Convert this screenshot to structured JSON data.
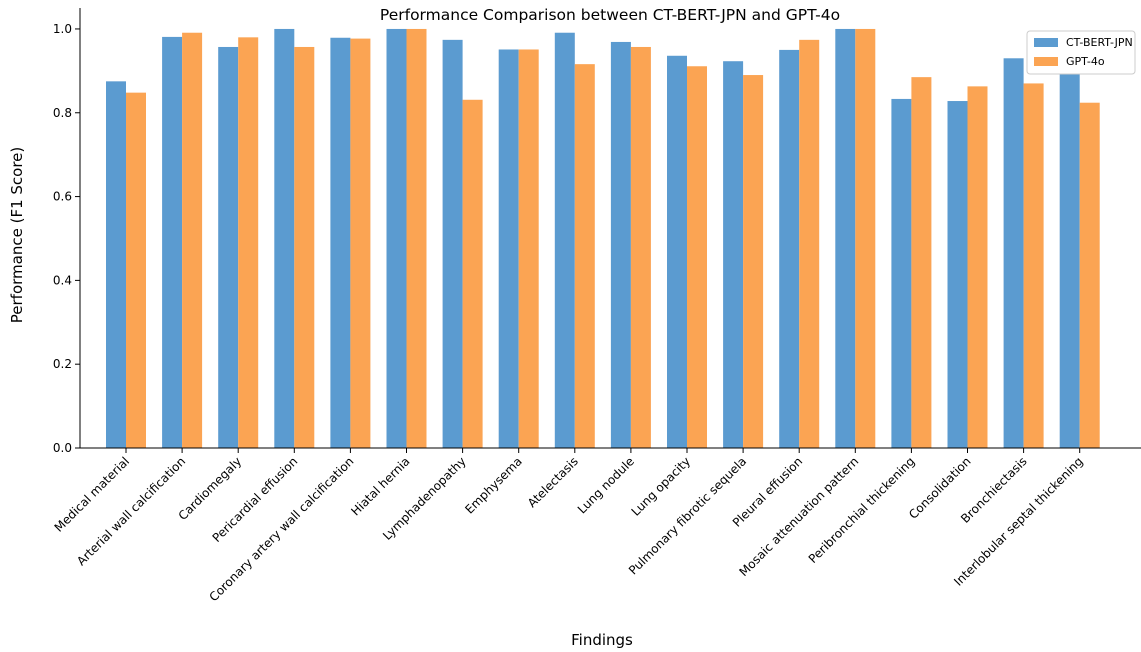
{
  "chart_data": {
    "type": "bar",
    "title": "Performance Comparison between CT-BERT-JPN and GPT-4o",
    "xlabel": "Findings",
    "ylabel": "Performance (F1 Score)",
    "ylim": [
      0,
      1.05
    ],
    "yticks": [
      "0.0",
      "0.2",
      "0.4",
      "0.6",
      "0.8",
      "1.0"
    ],
    "grid": false,
    "legend_position": "top-right",
    "categories": [
      "Medical material",
      "Arterial wall calcification",
      "Cardiomegaly",
      "Pericardial effusion",
      "Coronary artery wall calcification",
      "Hiatal hernia",
      "Lymphadenopathy",
      "Emphysema",
      "Atelectasis",
      "Lung nodule",
      "Lung opacity",
      "Pulmonary fibrotic sequela",
      "Pleural effusion",
      "Mosaic attenuation pattern",
      "Peribronchial thickening",
      "Consolidation",
      "Bronchiectasis",
      "Interlobular septal thickening"
    ],
    "series": [
      {
        "name": "CT-BERT-JPN",
        "color": "#5b9bd0",
        "values": [
          0.875,
          0.981,
          0.957,
          1.0,
          0.979,
          1.0,
          0.974,
          0.951,
          0.991,
          0.969,
          0.936,
          0.923,
          0.95,
          1.0,
          0.833,
          0.828,
          0.93,
          0.931
        ]
      },
      {
        "name": "GPT-4o",
        "color": "#fba453",
        "values": [
          0.848,
          0.991,
          0.98,
          0.957,
          0.977,
          1.0,
          0.831,
          0.951,
          0.916,
          0.957,
          0.911,
          0.89,
          0.974,
          1.0,
          0.885,
          0.863,
          0.87,
          0.824
        ]
      }
    ]
  }
}
